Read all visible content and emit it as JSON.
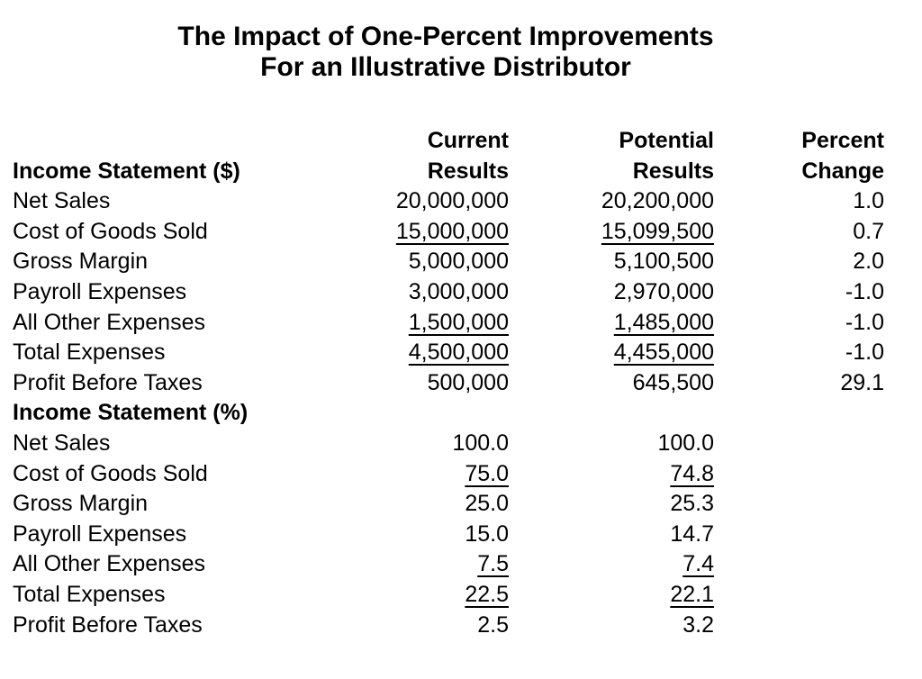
{
  "title": {
    "line1": "The Impact of One-Percent Improvements",
    "line2": "For an Illustrative Distributor"
  },
  "columns": {
    "current": {
      "line1": "Current",
      "line2": "Results"
    },
    "potential": {
      "line1": "Potential",
      "line2": "Results"
    },
    "percent": {
      "line1": "Percent",
      "line2": "Change"
    }
  },
  "sections": [
    {
      "header": "Income Statement ($)",
      "rows": [
        {
          "label": "Net Sales",
          "current": "20,000,000",
          "potential": "20,200,000",
          "change": "1.0",
          "underline": false
        },
        {
          "label": "Cost of Goods Sold",
          "current": "15,000,000",
          "potential": "15,099,500",
          "change": "0.7",
          "underline": true
        },
        {
          "label": "Gross Margin",
          "current": "5,000,000",
          "potential": "5,100,500",
          "change": "2.0",
          "underline": false
        },
        {
          "label": "Payroll Expenses",
          "current": "3,000,000",
          "potential": "2,970,000",
          "change": "-1.0",
          "underline": false
        },
        {
          "label": "All Other Expenses",
          "current": "1,500,000",
          "potential": "1,485,000",
          "change": "-1.0",
          "underline": true
        },
        {
          "label": "Total Expenses",
          "current": "4,500,000",
          "potential": "4,455,000",
          "change": "-1.0",
          "underline": true
        },
        {
          "label": "Profit Before Taxes",
          "current": "500,000",
          "potential": "645,500",
          "change": "29.1",
          "underline": false
        }
      ]
    },
    {
      "header": "Income Statement (%)",
      "rows": [
        {
          "label": "Net Sales",
          "current": "100.0",
          "potential": "100.0",
          "change": "",
          "underline": false
        },
        {
          "label": "Cost of Goods Sold",
          "current": "75.0",
          "potential": "74.8",
          "change": "",
          "underline": true
        },
        {
          "label": "Gross Margin",
          "current": "25.0",
          "potential": "25.3",
          "change": "",
          "underline": false
        },
        {
          "label": "Payroll Expenses",
          "current": "15.0",
          "potential": "14.7",
          "change": "",
          "underline": false
        },
        {
          "label": "All Other Expenses",
          "current": "7.5",
          "potential": "7.4",
          "change": "",
          "underline": true
        },
        {
          "label": "Total Expenses",
          "current": "22.5",
          "potential": "22.1",
          "change": "",
          "underline": true
        },
        {
          "label": "Profit Before Taxes",
          "current": "2.5",
          "potential": "3.2",
          "change": "",
          "underline": false
        }
      ]
    }
  ],
  "colors": {
    "text": "#000000",
    "background": "#ffffff"
  }
}
